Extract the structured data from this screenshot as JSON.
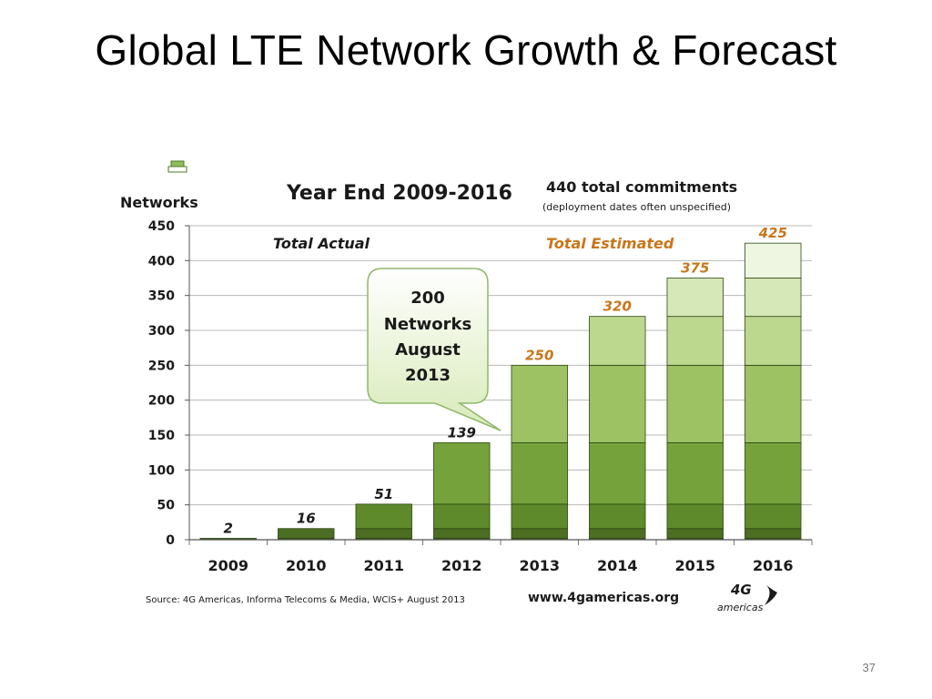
{
  "slide": {
    "title": "Global LTE Network Growth & Forecast",
    "page_number": "37"
  },
  "chart_data": {
    "type": "bar",
    "title": "Year End 2009-2016",
    "ylabel": "Networks",
    "xlabel": "",
    "ylim": [
      0,
      450
    ],
    "yticks": [
      0,
      50,
      100,
      150,
      200,
      250,
      300,
      350,
      400,
      450
    ],
    "grid": true,
    "categories": [
      "2009",
      "2010",
      "2011",
      "2012",
      "2013",
      "2014",
      "2015",
      "2016"
    ],
    "values": [
      2,
      16,
      51,
      139,
      250,
      320,
      375,
      425
    ],
    "value_labels": [
      "2",
      "16",
      "51",
      "139",
      "250",
      "320",
      "375",
      "425"
    ],
    "actual_years": [
      "2009",
      "2010",
      "2011",
      "2012"
    ],
    "estimated_years": [
      "2013",
      "2014",
      "2015",
      "2016"
    ],
    "annotations": {
      "total_actual": "Total Actual",
      "total_estimated": "Total Estimated",
      "commitments_title": "440 total commitments",
      "commitments_note": "(deployment  dates often unspecified)",
      "callout_lines": [
        "200",
        "Networks",
        "August",
        "2013"
      ]
    },
    "footer": {
      "source": "Source: 4G Americas, Informa Telecoms & Media, WCIS+ August 2013",
      "website": "www.4gamericas.org",
      "logo_text": "4G",
      "logo_subtext": "americas"
    },
    "colors": {
      "actual_label": "#1a1a1a",
      "estimated_label": "#c9761a",
      "grid": "#b8b8b8",
      "bar_dark": "#3f5e1a",
      "bar_mid": "#6f9a33",
      "bar_light": "#b9d68a",
      "bar_lightest": "#e6f1d2"
    }
  }
}
